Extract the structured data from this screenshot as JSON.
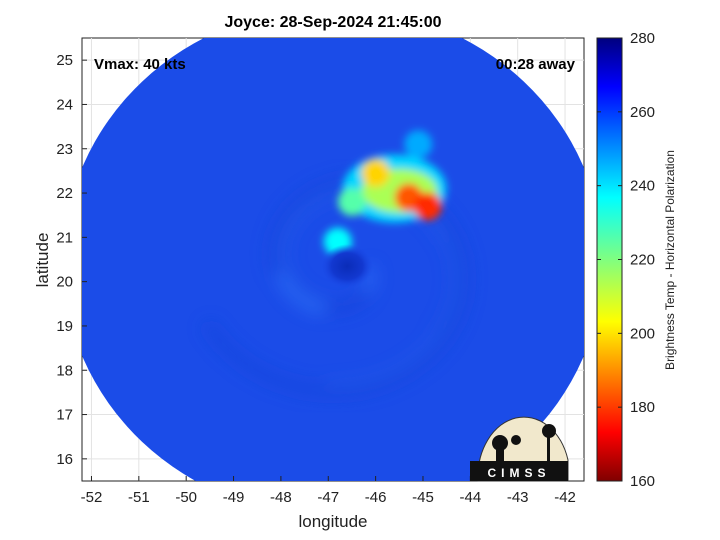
{
  "chart_data": {
    "type": "heatmap",
    "title": "Joyce: 28-Sep-2024 21:45:00",
    "xlabel": "longitude",
    "ylabel": "latitude",
    "xlim": [
      -52.2,
      -41.6
    ],
    "ylim": [
      15.5,
      25.5
    ],
    "xticks": [
      -52,
      -51,
      -50,
      -49,
      -48,
      -47,
      -46,
      -45,
      -44,
      -43,
      -42
    ],
    "yticks": [
      16,
      17,
      18,
      19,
      20,
      21,
      22,
      23,
      24,
      25
    ],
    "grid": true,
    "annotations": {
      "vmax": "Vmax: 40 kts",
      "away": "00:28 away"
    },
    "colorbar": {
      "label": "Brightness Temp - Horizontal Polarization",
      "range": [
        160,
        280
      ],
      "ticks": [
        160,
        180,
        200,
        220,
        240,
        260,
        280
      ],
      "colormap": "jet"
    },
    "swath": {
      "center_lon": -46.9,
      "center_lat": 20.45,
      "radius_lon": 5.7,
      "radius_lat": 5.75
    },
    "storm_center": {
      "lon": -46.6,
      "lat": 20.35
    },
    "cold_features": [
      {
        "lon": -45.3,
        "lat": 21.9,
        "min_temp": 185
      },
      {
        "lon": -46.0,
        "lat": 22.45,
        "min_temp": 200
      },
      {
        "lon": -44.9,
        "lat": 21.7,
        "min_temp": 180
      },
      {
        "lon": -46.5,
        "lat": 21.8,
        "min_temp": 225
      },
      {
        "lon": -46.8,
        "lat": 20.9,
        "min_temp": 235
      },
      {
        "lon": -45.1,
        "lat": 23.1,
        "min_temp": 245
      }
    ],
    "logo": {
      "text": "CIMSS"
    }
  }
}
